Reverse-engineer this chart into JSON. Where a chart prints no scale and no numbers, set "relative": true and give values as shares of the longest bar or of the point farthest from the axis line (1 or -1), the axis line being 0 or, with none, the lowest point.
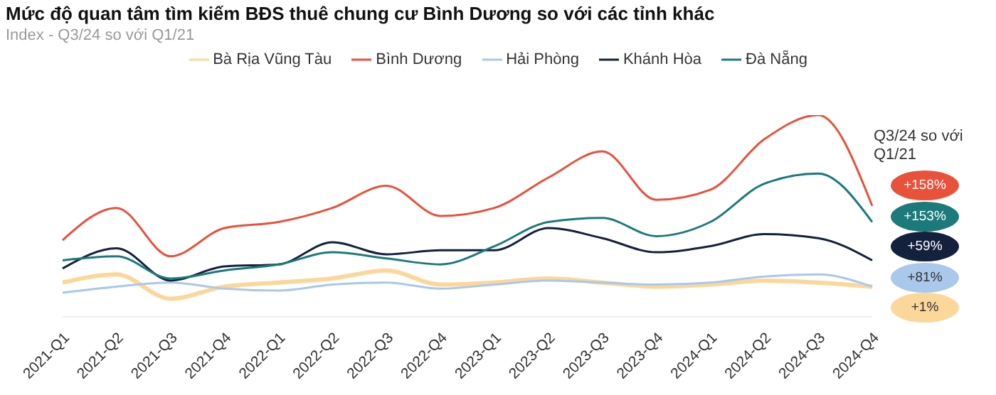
{
  "chart_data": {
    "type": "line",
    "title": "Mức độ quan tâm tìm kiếm BĐS thuê chung cư Bình Dương so với các tỉnh khác",
    "subtitle": "Index - Q3/24 so với Q1/21",
    "relative": true,
    "legend": "top",
    "marker": "none",
    "categories": [
      "2021-Q1",
      "2021-Q2",
      "2021-Q3",
      "2021-Q4",
      "2022-Q1",
      "2022-Q2",
      "2022-Q3",
      "2022-Q4",
      "2023-Q1",
      "2023-Q2",
      "2023-Q3",
      "2023-Q4",
      "2024-Q1",
      "2024-Q2",
      "2024-Q3",
      "2024-Q4"
    ],
    "series": [
      {
        "name": "Bà Rịa Vũng Tàu",
        "color": "#fcd79a",
        "values": [
          0.17,
          0.21,
          0.09,
          0.15,
          0.17,
          0.19,
          0.23,
          0.16,
          0.17,
          0.19,
          0.17,
          0.15,
          0.16,
          0.18,
          0.17,
          0.15
        ]
      },
      {
        "name": "Bình Dương",
        "color": "#e8513a",
        "values": [
          0.38,
          0.54,
          0.3,
          0.44,
          0.47,
          0.54,
          0.65,
          0.5,
          0.54,
          0.69,
          0.82,
          0.58,
          0.63,
          0.88,
          1,
          0.55
        ]
      },
      {
        "name": "Hải Phòng",
        "color": "#a9c8ec",
        "values": [
          0.12,
          0.15,
          0.17,
          0.14,
          0.13,
          0.16,
          0.17,
          0.14,
          0.16,
          0.18,
          0.17,
          0.16,
          0.17,
          0.2,
          0.21,
          0.15
        ]
      },
      {
        "name": "Khánh Hòa",
        "color": "#14213d",
        "values": [
          0.24,
          0.34,
          0.18,
          0.25,
          0.26,
          0.37,
          0.31,
          0.33,
          0.33,
          0.44,
          0.39,
          0.32,
          0.35,
          0.41,
          0.39,
          0.28
        ]
      },
      {
        "name": "Đà Nẵng",
        "color": "#1c7a7a",
        "values": [
          0.28,
          0.3,
          0.19,
          0.23,
          0.26,
          0.32,
          0.29,
          0.26,
          0.35,
          0.47,
          0.49,
          0.4,
          0.47,
          0.66,
          0.71,
          0.47
        ]
      }
    ],
    "annotations": [
      "Q3/24 so với Q1/21",
      "+158%",
      "+153%",
      "+59%",
      "+81%",
      "+1%"
    ]
  }
}
